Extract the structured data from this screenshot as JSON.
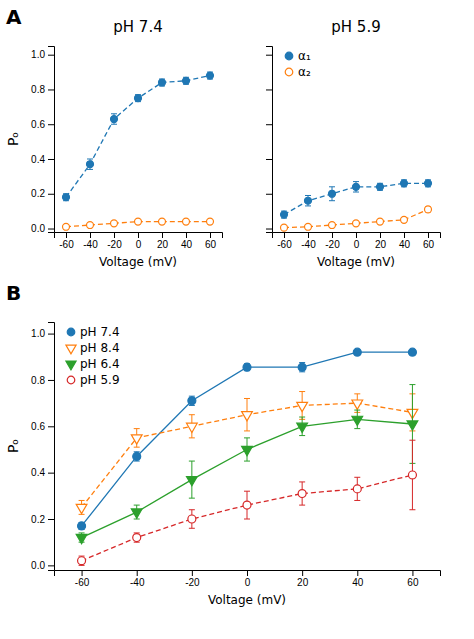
{
  "chart_data": [
    {
      "type": "scatter",
      "title": "pH 7.4",
      "xlabel": "Voltage (mV)",
      "ylabel": "Pₒ",
      "annotations": [
        "A"
      ],
      "x": [
        -60,
        -40,
        -20,
        0,
        20,
        40,
        60
      ],
      "series": [
        {
          "values": [
            0.18,
            0.37,
            0.63,
            0.75,
            0.84,
            0.85,
            0.88
          ],
          "errors": [
            0.02,
            0.03,
            0.03,
            0.02,
            0.02,
            0.02,
            0.02
          ],
          "marker": "circle",
          "line_style": "dashed"
        },
        {
          "values": [
            0.01,
            0.02,
            0.03,
            0.04,
            0.04,
            0.04,
            0.04
          ],
          "errors": [
            0.005,
            0.005,
            0.005,
            0.005,
            0.005,
            0.005,
            0.005
          ],
          "marker": "circle-open",
          "line_style": "dashed"
        }
      ],
      "xlim": [
        -70,
        70
      ],
      "xticks": [
        -60,
        -40,
        -20,
        0,
        20,
        40,
        60
      ],
      "ylim": [
        -0.02,
        1.05
      ],
      "yticks": [
        {
          "value": 0.0,
          "label": "0.0"
        },
        0.2,
        0.4,
        0.6,
        0.8,
        {
          "value": 1.0,
          "label": "1.0"
        }
      ],
      "grid": false
    },
    {
      "type": "scatter",
      "title": "pH 5.9",
      "xlabel": "Voltage (mV)",
      "x": [
        -60,
        -40,
        -20,
        0,
        20,
        40,
        60
      ],
      "series": [
        {
          "name": "α₁",
          "values": [
            0.08,
            0.16,
            0.2,
            0.24,
            0.24,
            0.26,
            0.26
          ],
          "errors": [
            0.02,
            0.03,
            0.04,
            0.03,
            0.02,
            0.02,
            0.02
          ],
          "marker": "circle",
          "line_style": "dashed"
        },
        {
          "name": "α₂",
          "values": [
            0.005,
            0.01,
            0.02,
            0.03,
            0.04,
            0.05,
            0.11
          ],
          "errors": [
            0.003,
            0.003,
            0.005,
            0.005,
            0.008,
            0.01,
            0.015
          ],
          "marker": "circle-open",
          "line_style": "dashed"
        }
      ],
      "xlim": [
        -70,
        70
      ],
      "xticks": [
        -60,
        -40,
        -20,
        0,
        20,
        40,
        60
      ],
      "ylim": [
        -0.02,
        1.05
      ],
      "yticks": [
        0.0,
        0.2,
        0.4,
        0.6,
        0.8,
        1.0
      ],
      "tick_labels": "x",
      "legend": "upper left",
      "grid": false
    },
    {
      "type": "scatter",
      "xlabel": "Voltage (mV)",
      "ylabel": "Pₒ",
      "annotations": [
        "B"
      ],
      "x": [
        -60,
        -40,
        -20,
        0,
        20,
        40,
        60
      ],
      "series": [
        {
          "name": "pH 7.4",
          "values": [
            0.17,
            0.47,
            0.71,
            0.855,
            0.855,
            0.92,
            0.92
          ],
          "errors": [
            0.015,
            0.02,
            0.02,
            0.015,
            0.02,
            0.01,
            0.01
          ],
          "marker": "circle",
          "line_style": "solid"
        },
        {
          "name": "pH 8.4",
          "values": [
            0.25,
            0.55,
            0.6,
            0.65,
            0.69,
            0.7,
            0.66
          ],
          "errors": [
            0.03,
            0.04,
            0.05,
            0.07,
            0.06,
            0.04,
            0.08
          ],
          "marker": "triangle-down-open",
          "line_style": "dashed"
        },
        {
          "name": "pH 6.4",
          "values": [
            0.12,
            0.23,
            0.37,
            0.5,
            0.6,
            0.63,
            0.61
          ],
          "errors": [
            0.02,
            0.03,
            0.08,
            0.05,
            0.04,
            0.04,
            0.17
          ],
          "marker": "triangle-down",
          "line_style": "solid"
        },
        {
          "name": "pH 5.9",
          "values": [
            0.02,
            0.12,
            0.2,
            0.26,
            0.31,
            0.33,
            0.39
          ],
          "errors": [
            0.02,
            0.02,
            0.04,
            0.06,
            0.05,
            0.05,
            0.15
          ],
          "marker": "circle-open",
          "line_style": "dashed"
        }
      ],
      "xlim": [
        -70,
        70
      ],
      "xticks": [
        -60,
        -40,
        -20,
        0,
        20,
        40,
        60
      ],
      "ylim": [
        -0.02,
        1.05
      ],
      "yticks": [
        {
          "value": 0.0,
          "label": "0.0"
        },
        0.2,
        0.4,
        0.6,
        0.8,
        {
          "value": 1.0,
          "label": "1.0"
        }
      ],
      "legend": "upper left",
      "grid": false
    }
  ]
}
